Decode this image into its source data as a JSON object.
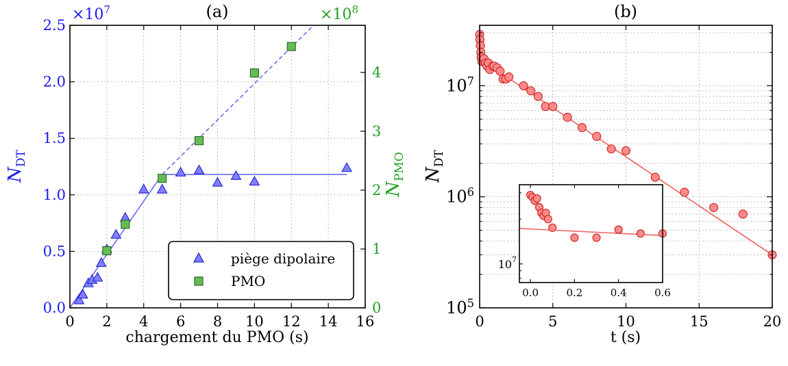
{
  "chart_data": [
    {
      "panel": "(a)",
      "type": "scatter",
      "title": "(a)",
      "xlabel": "chargement du PMO (s)",
      "ylabel": "N",
      "ylabel_sub": "DT",
      "ylabel2": "N",
      "ylabel2_sub": "PMO",
      "xlim": [
        0,
        16
      ],
      "ylim": [
        0,
        2.5
      ],
      "y2lim": [
        0,
        4.8
      ],
      "x_ticks": [
        0,
        2,
        4,
        6,
        8,
        10,
        12,
        14,
        16
      ],
      "y_ticks": [
        0.0,
        0.5,
        1.0,
        1.5,
        2.0,
        2.5
      ],
      "y_ticklabels": [
        "0.0",
        "0.5",
        "1.0",
        "1.5",
        "2.0",
        "2.5"
      ],
      "y2_ticks": [
        0,
        1,
        2,
        3,
        4
      ],
      "y_multiplier_base": "×10",
      "y_multiplier_exp": "7",
      "y2_multiplier_base": "×10",
      "y2_multiplier_exp": "8",
      "grid": true,
      "legend_position": "bottom-right",
      "colors": {
        "left_axis": "#1a1aee",
        "right_axis": "#22a022",
        "triangle_fill": "#8080ff",
        "triangle_edge": "#2222cc",
        "square_fill": "#66bb55",
        "square_edge": "#226622",
        "fit_line": "#6a6af0"
      },
      "series": [
        {
          "name": "piège dipolaire",
          "marker": "triangle",
          "axis": "left",
          "points": [
            [
              0.5,
              0.07
            ],
            [
              0.7,
              0.12
            ],
            [
              1.0,
              0.22
            ],
            [
              1.2,
              0.25
            ],
            [
              1.5,
              0.27
            ],
            [
              1.7,
              0.4
            ],
            [
              2.0,
              0.52
            ],
            [
              2.5,
              0.65
            ],
            [
              3.0,
              0.8
            ],
            [
              4.0,
              1.05
            ],
            [
              5.0,
              1.05
            ],
            [
              6.0,
              1.2
            ],
            [
              7.0,
              1.22
            ],
            [
              8.0,
              1.11
            ],
            [
              9.0,
              1.17
            ],
            [
              10.0,
              1.12
            ],
            [
              15.0,
              1.24
            ]
          ]
        },
        {
          "name": "PMO",
          "marker": "square",
          "axis": "right",
          "points": [
            [
              2.0,
              0.97
            ],
            [
              3.0,
              1.42
            ],
            [
              5.0,
              2.2
            ],
            [
              7.0,
              2.84
            ],
            [
              10.0,
              3.99
            ],
            [
              12.0,
              4.44
            ]
          ]
        }
      ],
      "fit_lines": [
        {
          "style": "solid",
          "points": [
            [
              0,
              0
            ],
            [
              5.0,
              1.18
            ],
            [
              15.0,
              1.18
            ]
          ]
        },
        {
          "style": "dashed",
          "points": [
            [
              5.0,
              1.18
            ],
            [
              13.2,
              2.5
            ]
          ]
        }
      ]
    },
    {
      "panel": "(b)",
      "type": "scatter",
      "title": "(b)",
      "xlabel": "t (s)",
      "ylabel": "N",
      "ylabel_sub": "DT",
      "yscale": "log",
      "xlim": [
        0,
        20
      ],
      "ylim": [
        100000,
        35000000
      ],
      "x_ticks": [
        0,
        5,
        10,
        15,
        20
      ],
      "y_ticks": [
        100000,
        1000000,
        10000000
      ],
      "y_ticklabels": [
        {
          "base": "10",
          "exp": "5"
        },
        {
          "base": "10",
          "exp": "6"
        },
        {
          "base": "10",
          "exp": "7"
        }
      ],
      "grid": true,
      "colors": {
        "marker_fill": "#ff8a8a",
        "marker_edge": "#cc2222",
        "fit_line": "#f06060"
      },
      "points": [
        [
          0.0,
          29000000
        ],
        [
          0.02,
          26000000
        ],
        [
          0.05,
          23000000
        ],
        [
          0.08,
          20000000
        ],
        [
          0.1,
          18000000
        ],
        [
          0.15,
          16500000
        ],
        [
          0.3,
          17500000
        ],
        [
          0.4,
          16000000
        ],
        [
          0.5,
          15000000
        ],
        [
          0.6,
          16000000
        ],
        [
          0.7,
          14000000
        ],
        [
          0.9,
          15000000
        ],
        [
          1.0,
          15000000
        ],
        [
          1.2,
          14500000
        ],
        [
          1.4,
          13500000
        ],
        [
          1.6,
          11500000
        ],
        [
          1.8,
          11500000
        ],
        [
          2.0,
          12000000
        ],
        [
          3.0,
          10000000
        ],
        [
          3.5,
          9000000
        ],
        [
          4.0,
          8000000
        ],
        [
          4.5,
          6500000
        ],
        [
          5.0,
          6500000
        ],
        [
          6.0,
          5200000
        ],
        [
          7.0,
          4200000
        ],
        [
          8.0,
          3500000
        ],
        [
          9.0,
          2700000
        ],
        [
          10.0,
          2600000
        ],
        [
          12.0,
          1500000
        ],
        [
          14.0,
          1100000
        ],
        [
          16.0,
          800000
        ],
        [
          18.0,
          700000
        ],
        [
          20.0,
          300000
        ]
      ],
      "fit_line": [
        [
          0,
          17500000
        ],
        [
          20,
          300000
        ]
      ],
      "inset": {
        "xlim": [
          -0.05,
          0.6
        ],
        "x_ticks": [
          0.0,
          0.2,
          0.4,
          0.6
        ],
        "x_ticklabels": [
          "0.0",
          "0.2",
          "0.4",
          "0.6"
        ],
        "yscale": "log",
        "ylim": [
          7500000,
          34000000
        ],
        "y_tick_value": 10000000,
        "y_ticklabel": {
          "base": "10",
          "exp": "7"
        },
        "points": [
          [
            0.0,
            29000000
          ],
          [
            0.01,
            28000000
          ],
          [
            0.02,
            26500000
          ],
          [
            0.03,
            27500000
          ],
          [
            0.04,
            24000000
          ],
          [
            0.05,
            22000000
          ],
          [
            0.06,
            21000000
          ],
          [
            0.07,
            22000000
          ],
          [
            0.08,
            20000000
          ],
          [
            0.1,
            17500000
          ],
          [
            0.2,
            15000000
          ],
          [
            0.3,
            15000000
          ],
          [
            0.4,
            17000000
          ],
          [
            0.5,
            16000000
          ],
          [
            0.6,
            16000000
          ]
        ],
        "fit_line": [
          [
            -0.05,
            17300000
          ],
          [
            0.6,
            15500000
          ]
        ]
      }
    }
  ],
  "legend_title_a": "(a)",
  "legend_title_b": "(b)"
}
